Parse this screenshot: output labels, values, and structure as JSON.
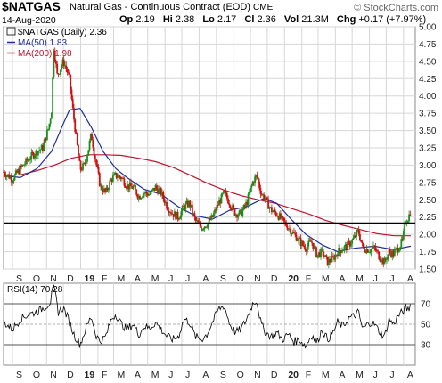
{
  "header": {
    "symbol": "$NATGAS",
    "description": "Natural Gas - Continuous Contract (EOD)",
    "exchange": "CME",
    "watermark": "© StockCharts.com",
    "date": "14-Aug-2020",
    "stats": [
      {
        "label": "Op",
        "value": "2.19"
      },
      {
        "label": "Hi",
        "value": "2.38"
      },
      {
        "label": "Lo",
        "value": "2.17"
      },
      {
        "label": "Cl",
        "value": "2.36"
      },
      {
        "label": "Vol",
        "value": "21.3M"
      },
      {
        "label": "Chg",
        "value": "+0.17 (+7.97%)"
      }
    ]
  },
  "colors": {
    "bull": "#1a8f1a",
    "bear": "#cc1111",
    "ma50": "#1f2d9e",
    "ma200": "#c0142f",
    "grid": "#d6d6d6",
    "level_line": "#000000"
  },
  "chart_data": [
    {
      "type": "candlestick",
      "legend": [
        {
          "label": "$NATGAS (Daily) 2.36",
          "color": "#000000"
        },
        {
          "label": "MA(50) 1.83",
          "color": "#1f2d9e"
        },
        {
          "label": "MA(200) 1.98",
          "color": "#c0142f"
        }
      ],
      "ylim": [
        1.5,
        5.0
      ],
      "y_ticks": [
        "1.50",
        "1.75",
        "2.00",
        "2.25",
        "2.50",
        "2.75",
        "3.00",
        "3.25",
        "3.50",
        "3.75",
        "4.00",
        "4.25",
        "4.50",
        "4.75",
        "5.00"
      ],
      "x_ticks": [
        {
          "label": "S",
          "date": "2018-09-01"
        },
        {
          "label": "O",
          "date": "2018-10-01"
        },
        {
          "label": "N",
          "date": "2018-11-01"
        },
        {
          "label": "D",
          "date": "2018-12-01"
        },
        {
          "label": "19",
          "date": "2019-01-01",
          "bold": true
        },
        {
          "label": "F",
          "date": "2019-02-01"
        },
        {
          "label": "M",
          "date": "2019-03-01"
        },
        {
          "label": "A",
          "date": "2019-04-01"
        },
        {
          "label": "M",
          "date": "2019-05-01"
        },
        {
          "label": "J",
          "date": "2019-06-01"
        },
        {
          "label": "J",
          "date": "2019-07-01"
        },
        {
          "label": "A",
          "date": "2019-08-01"
        },
        {
          "label": "S",
          "date": "2019-09-01"
        },
        {
          "label": "O",
          "date": "2019-10-01"
        },
        {
          "label": "N",
          "date": "2019-11-01"
        },
        {
          "label": "D",
          "date": "2019-12-01"
        },
        {
          "label": "20",
          "date": "2020-01-01",
          "bold": true
        },
        {
          "label": "F",
          "date": "2020-02-01"
        },
        {
          "label": "M",
          "date": "2020-03-01"
        },
        {
          "label": "A",
          "date": "2020-04-01"
        },
        {
          "label": "M",
          "date": "2020-05-01"
        },
        {
          "label": "J",
          "date": "2020-06-01"
        },
        {
          "label": "J",
          "date": "2020-07-01"
        },
        {
          "label": "A",
          "date": "2020-08-01"
        }
      ],
      "horizontal_line": 2.16,
      "close": [
        {
          "date": "2018-08-16",
          "value": 2.9
        },
        {
          "date": "2018-09-01",
          "value": 2.8
        },
        {
          "date": "2018-09-15",
          "value": 2.95
        },
        {
          "date": "2018-10-01",
          "value": 3.1
        },
        {
          "date": "2018-10-15",
          "value": 3.2
        },
        {
          "date": "2018-10-25",
          "value": 3.25
        },
        {
          "date": "2018-11-05",
          "value": 3.55
        },
        {
          "date": "2018-11-10",
          "value": 3.8
        },
        {
          "date": "2018-11-14",
          "value": 4.7
        },
        {
          "date": "2018-11-20",
          "value": 4.3
        },
        {
          "date": "2018-11-26",
          "value": 4.4
        },
        {
          "date": "2018-12-01",
          "value": 4.5
        },
        {
          "date": "2018-12-06",
          "value": 4.4
        },
        {
          "date": "2018-12-12",
          "value": 4.25
        },
        {
          "date": "2018-12-18",
          "value": 3.8
        },
        {
          "date": "2018-12-24",
          "value": 3.4
        },
        {
          "date": "2018-12-31",
          "value": 2.94
        },
        {
          "date": "2019-01-08",
          "value": 3.0
        },
        {
          "date": "2019-01-14",
          "value": 3.2
        },
        {
          "date": "2019-01-20",
          "value": 3.45
        },
        {
          "date": "2019-01-27",
          "value": 3.1
        },
        {
          "date": "2019-02-05",
          "value": 2.7
        },
        {
          "date": "2019-02-15",
          "value": 2.6
        },
        {
          "date": "2019-02-25",
          "value": 2.8
        },
        {
          "date": "2019-03-05",
          "value": 2.85
        },
        {
          "date": "2019-03-15",
          "value": 2.82
        },
        {
          "date": "2019-03-25",
          "value": 2.7
        },
        {
          "date": "2019-04-05",
          "value": 2.68
        },
        {
          "date": "2019-04-15",
          "value": 2.55
        },
        {
          "date": "2019-04-25",
          "value": 2.6
        },
        {
          "date": "2019-05-05",
          "value": 2.58
        },
        {
          "date": "2019-05-15",
          "value": 2.68
        },
        {
          "date": "2019-05-25",
          "value": 2.6
        },
        {
          "date": "2019-06-05",
          "value": 2.4
        },
        {
          "date": "2019-06-15",
          "value": 2.3
        },
        {
          "date": "2019-06-25",
          "value": 2.25
        },
        {
          "date": "2019-07-05",
          "value": 2.4
        },
        {
          "date": "2019-07-15",
          "value": 2.45
        },
        {
          "date": "2019-07-25",
          "value": 2.2
        },
        {
          "date": "2019-08-05",
          "value": 2.1
        },
        {
          "date": "2019-08-15",
          "value": 2.15
        },
        {
          "date": "2019-08-25",
          "value": 2.25
        },
        {
          "date": "2019-09-05",
          "value": 2.45
        },
        {
          "date": "2019-09-15",
          "value": 2.6
        },
        {
          "date": "2019-09-25",
          "value": 2.45
        },
        {
          "date": "2019-10-05",
          "value": 2.3
        },
        {
          "date": "2019-10-15",
          "value": 2.3
        },
        {
          "date": "2019-10-25",
          "value": 2.45
        },
        {
          "date": "2019-11-05",
          "value": 2.75
        },
        {
          "date": "2019-11-12",
          "value": 2.85
        },
        {
          "date": "2019-11-20",
          "value": 2.6
        },
        {
          "date": "2019-11-28",
          "value": 2.5
        },
        {
          "date": "2019-12-08",
          "value": 2.35
        },
        {
          "date": "2019-12-18",
          "value": 2.3
        },
        {
          "date": "2019-12-28",
          "value": 2.2
        },
        {
          "date": "2020-01-08",
          "value": 2.1
        },
        {
          "date": "2020-01-18",
          "value": 2.0
        },
        {
          "date": "2020-01-28",
          "value": 1.9
        },
        {
          "date": "2020-02-08",
          "value": 1.8
        },
        {
          "date": "2020-02-18",
          "value": 1.9
        },
        {
          "date": "2020-02-28",
          "value": 1.7
        },
        {
          "date": "2020-03-08",
          "value": 1.75
        },
        {
          "date": "2020-03-18",
          "value": 1.6
        },
        {
          "date": "2020-03-28",
          "value": 1.65
        },
        {
          "date": "2020-04-05",
          "value": 1.75
        },
        {
          "date": "2020-04-15",
          "value": 1.8
        },
        {
          "date": "2020-04-25",
          "value": 1.85
        },
        {
          "date": "2020-05-05",
          "value": 1.95
        },
        {
          "date": "2020-05-12",
          "value": 2.05
        },
        {
          "date": "2020-05-20",
          "value": 1.8
        },
        {
          "date": "2020-06-01",
          "value": 1.78
        },
        {
          "date": "2020-06-10",
          "value": 1.8
        },
        {
          "date": "2020-06-20",
          "value": 1.66
        },
        {
          "date": "2020-06-28",
          "value": 1.6
        },
        {
          "date": "2020-07-06",
          "value": 1.75
        },
        {
          "date": "2020-07-14",
          "value": 1.72
        },
        {
          "date": "2020-07-22",
          "value": 1.8
        },
        {
          "date": "2020-07-30",
          "value": 1.9
        },
        {
          "date": "2020-08-05",
          "value": 2.2
        },
        {
          "date": "2020-08-10",
          "value": 2.25
        },
        {
          "date": "2020-08-14",
          "value": 2.36
        }
      ],
      "ma50": [
        {
          "date": "2018-08-16",
          "value": 2.85
        },
        {
          "date": "2018-09-15",
          "value": 2.82
        },
        {
          "date": "2018-10-15",
          "value": 2.95
        },
        {
          "date": "2018-11-10",
          "value": 3.2
        },
        {
          "date": "2018-12-01",
          "value": 3.6
        },
        {
          "date": "2018-12-12",
          "value": 3.8
        },
        {
          "date": "2018-12-31",
          "value": 3.82
        },
        {
          "date": "2019-01-20",
          "value": 3.55
        },
        {
          "date": "2019-02-10",
          "value": 3.2
        },
        {
          "date": "2019-03-05",
          "value": 2.95
        },
        {
          "date": "2019-03-25",
          "value": 2.82
        },
        {
          "date": "2019-04-25",
          "value": 2.65
        },
        {
          "date": "2019-05-25",
          "value": 2.58
        },
        {
          "date": "2019-06-25",
          "value": 2.4
        },
        {
          "date": "2019-07-25",
          "value": 2.27
        },
        {
          "date": "2019-08-25",
          "value": 2.22
        },
        {
          "date": "2019-09-25",
          "value": 2.35
        },
        {
          "date": "2019-10-25",
          "value": 2.4
        },
        {
          "date": "2019-11-25",
          "value": 2.52
        },
        {
          "date": "2019-12-18",
          "value": 2.45
        },
        {
          "date": "2020-01-15",
          "value": 2.2
        },
        {
          "date": "2020-02-08",
          "value": 2.0
        },
        {
          "date": "2020-03-08",
          "value": 1.85
        },
        {
          "date": "2020-04-05",
          "value": 1.75
        },
        {
          "date": "2020-05-05",
          "value": 1.8
        },
        {
          "date": "2020-06-10",
          "value": 1.83
        },
        {
          "date": "2020-07-14",
          "value": 1.78
        },
        {
          "date": "2020-08-14",
          "value": 1.83
        }
      ],
      "ma200": [
        {
          "date": "2018-08-16",
          "value": 2.85
        },
        {
          "date": "2018-09-15",
          "value": 2.86
        },
        {
          "date": "2018-10-15",
          "value": 2.92
        },
        {
          "date": "2018-11-15",
          "value": 3.0
        },
        {
          "date": "2018-12-15",
          "value": 3.1
        },
        {
          "date": "2019-01-15",
          "value": 3.15
        },
        {
          "date": "2019-02-15",
          "value": 3.15
        },
        {
          "date": "2019-03-15",
          "value": 3.14
        },
        {
          "date": "2019-04-15",
          "value": 3.1
        },
        {
          "date": "2019-05-15",
          "value": 3.05
        },
        {
          "date": "2019-06-15",
          "value": 2.97
        },
        {
          "date": "2019-07-15",
          "value": 2.86
        },
        {
          "date": "2019-08-15",
          "value": 2.74
        },
        {
          "date": "2019-09-15",
          "value": 2.64
        },
        {
          "date": "2019-10-15",
          "value": 2.56
        },
        {
          "date": "2019-11-15",
          "value": 2.5
        },
        {
          "date": "2019-12-15",
          "value": 2.45
        },
        {
          "date": "2020-01-15",
          "value": 2.37
        },
        {
          "date": "2020-02-15",
          "value": 2.29
        },
        {
          "date": "2020-03-15",
          "value": 2.2
        },
        {
          "date": "2020-04-15",
          "value": 2.13
        },
        {
          "date": "2020-05-15",
          "value": 2.07
        },
        {
          "date": "2020-06-15",
          "value": 2.01
        },
        {
          "date": "2020-07-15",
          "value": 1.98
        },
        {
          "date": "2020-08-14",
          "value": 1.98
        }
      ]
    },
    {
      "type": "line",
      "legend": [
        {
          "label": "RSI(14) 70.28",
          "color": "#000000"
        }
      ],
      "ylim": [
        10,
        90
      ],
      "y_ticks": [
        "30",
        "50",
        "70"
      ],
      "levels": [
        30,
        50,
        70
      ],
      "values": [
        {
          "date": "2018-08-16",
          "value": 52
        },
        {
          "date": "2018-09-01",
          "value": 45
        },
        {
          "date": "2018-09-15",
          "value": 55
        },
        {
          "date": "2018-10-01",
          "value": 60
        },
        {
          "date": "2018-10-15",
          "value": 62
        },
        {
          "date": "2018-11-01",
          "value": 68
        },
        {
          "date": "2018-11-08",
          "value": 72
        },
        {
          "date": "2018-11-14",
          "value": 88
        },
        {
          "date": "2018-11-22",
          "value": 62
        },
        {
          "date": "2018-12-01",
          "value": 66
        },
        {
          "date": "2018-12-10",
          "value": 55
        },
        {
          "date": "2018-12-20",
          "value": 40
        },
        {
          "date": "2018-12-31",
          "value": 30
        },
        {
          "date": "2019-01-10",
          "value": 45
        },
        {
          "date": "2019-01-20",
          "value": 58
        },
        {
          "date": "2019-01-28",
          "value": 40
        },
        {
          "date": "2019-02-05",
          "value": 33
        },
        {
          "date": "2019-02-15",
          "value": 38
        },
        {
          "date": "2019-02-25",
          "value": 55
        },
        {
          "date": "2019-03-05",
          "value": 60
        },
        {
          "date": "2019-03-15",
          "value": 50
        },
        {
          "date": "2019-03-25",
          "value": 45
        },
        {
          "date": "2019-04-05",
          "value": 50
        },
        {
          "date": "2019-04-15",
          "value": 40
        },
        {
          "date": "2019-04-25",
          "value": 48
        },
        {
          "date": "2019-05-05",
          "value": 46
        },
        {
          "date": "2019-05-15",
          "value": 52
        },
        {
          "date": "2019-05-25",
          "value": 45
        },
        {
          "date": "2019-06-05",
          "value": 38
        },
        {
          "date": "2019-06-15",
          "value": 35
        },
        {
          "date": "2019-06-25",
          "value": 38
        },
        {
          "date": "2019-07-05",
          "value": 55
        },
        {
          "date": "2019-07-15",
          "value": 52
        },
        {
          "date": "2019-07-25",
          "value": 38
        },
        {
          "date": "2019-08-05",
          "value": 35
        },
        {
          "date": "2019-08-15",
          "value": 40
        },
        {
          "date": "2019-08-25",
          "value": 52
        },
        {
          "date": "2019-09-05",
          "value": 65
        },
        {
          "date": "2019-09-15",
          "value": 68
        },
        {
          "date": "2019-09-25",
          "value": 50
        },
        {
          "date": "2019-10-05",
          "value": 42
        },
        {
          "date": "2019-10-15",
          "value": 45
        },
        {
          "date": "2019-10-25",
          "value": 55
        },
        {
          "date": "2019-11-05",
          "value": 70
        },
        {
          "date": "2019-11-12",
          "value": 74
        },
        {
          "date": "2019-11-20",
          "value": 50
        },
        {
          "date": "2019-11-28",
          "value": 42
        },
        {
          "date": "2019-12-08",
          "value": 38
        },
        {
          "date": "2019-12-18",
          "value": 42
        },
        {
          "date": "2019-12-28",
          "value": 35
        },
        {
          "date": "2020-01-08",
          "value": 40
        },
        {
          "date": "2020-01-18",
          "value": 33
        },
        {
          "date": "2020-01-28",
          "value": 35
        },
        {
          "date": "2020-02-08",
          "value": 28
        },
        {
          "date": "2020-02-18",
          "value": 40
        },
        {
          "date": "2020-02-28",
          "value": 32
        },
        {
          "date": "2020-03-08",
          "value": 45
        },
        {
          "date": "2020-03-18",
          "value": 35
        },
        {
          "date": "2020-03-28",
          "value": 42
        },
        {
          "date": "2020-04-05",
          "value": 52
        },
        {
          "date": "2020-04-15",
          "value": 48
        },
        {
          "date": "2020-04-25",
          "value": 56
        },
        {
          "date": "2020-05-05",
          "value": 58
        },
        {
          "date": "2020-05-12",
          "value": 62
        },
        {
          "date": "2020-05-20",
          "value": 45
        },
        {
          "date": "2020-06-01",
          "value": 52
        },
        {
          "date": "2020-06-10",
          "value": 50
        },
        {
          "date": "2020-06-20",
          "value": 42
        },
        {
          "date": "2020-06-28",
          "value": 38
        },
        {
          "date": "2020-07-06",
          "value": 55
        },
        {
          "date": "2020-07-14",
          "value": 50
        },
        {
          "date": "2020-07-22",
          "value": 58
        },
        {
          "date": "2020-07-30",
          "value": 62
        },
        {
          "date": "2020-08-05",
          "value": 66
        },
        {
          "date": "2020-08-10",
          "value": 64
        },
        {
          "date": "2020-08-14",
          "value": 70.28
        }
      ]
    }
  ]
}
